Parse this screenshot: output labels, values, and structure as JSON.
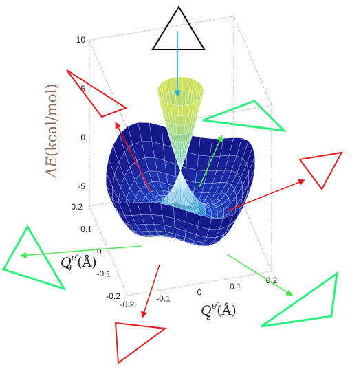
{
  "axes": {
    "energy": {
      "symbol": "ΔE",
      "unit": "(kcal/mol)",
      "ticks": [
        10,
        5,
        0,
        -5
      ]
    },
    "q_theta": {
      "symbol": "Q",
      "superscript": "e′",
      "subscript": "θ",
      "unit": "(Å)",
      "ticks": [
        0.2,
        0.1,
        0,
        -0.1,
        -0.2
      ]
    },
    "q_epsilon": {
      "symbol": "Q",
      "superscript": "e′",
      "subscript": "ε",
      "unit": "(Å)",
      "ticks": [
        -0.2,
        -0.1,
        0,
        0.1,
        0.2
      ]
    }
  }
}
